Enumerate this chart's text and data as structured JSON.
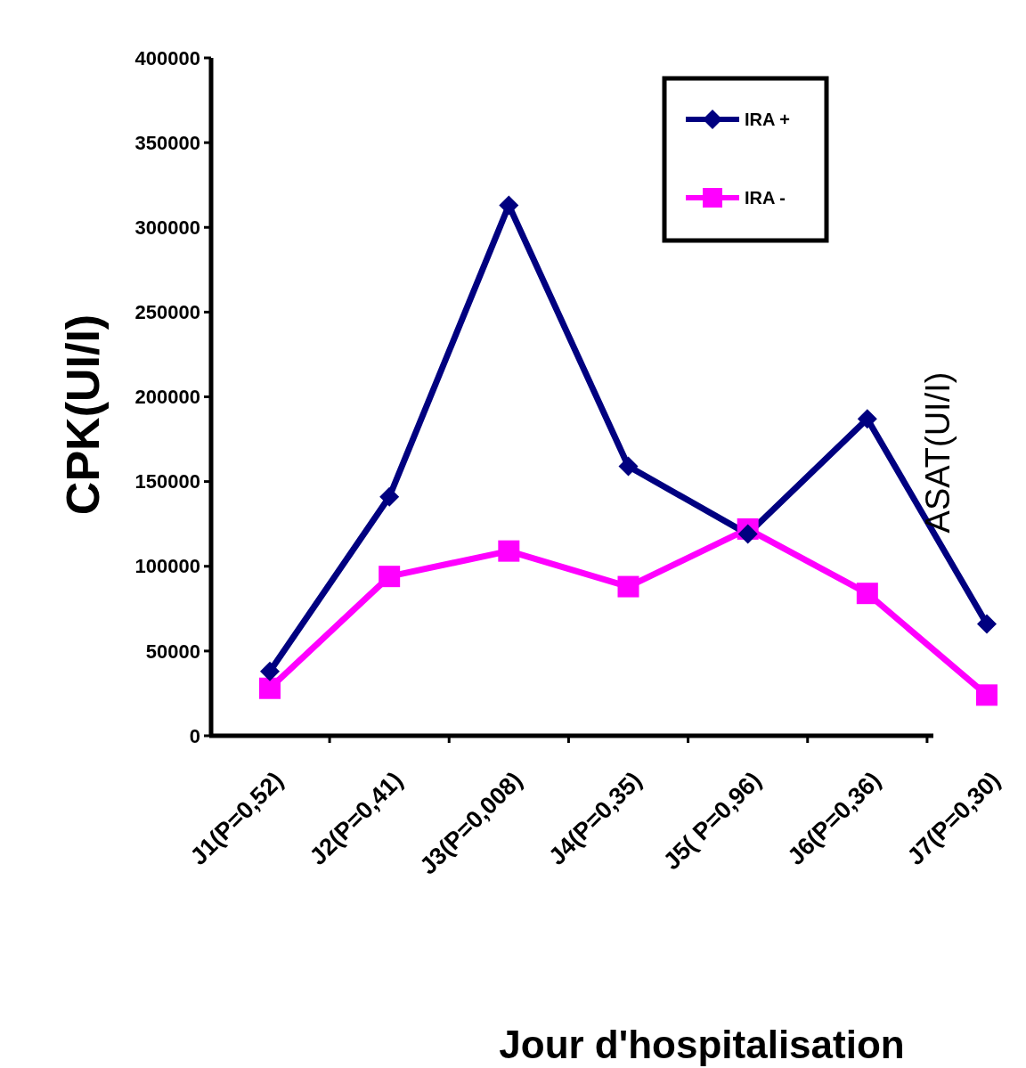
{
  "chart_data": {
    "type": "line",
    "categories": [
      "J1(P=0,52)",
      "J2(P=0,41)",
      "J3(P=0,008)",
      "J4(P=0,35)",
      "J5( P=0,96)",
      "J6(P=0,36)",
      "J7(P=0,30)"
    ],
    "series": [
      {
        "name": "IRA +",
        "color": "#000080",
        "marker": "diamond",
        "values": [
          38000,
          141000,
          313000,
          159000,
          119000,
          187000,
          66000
        ]
      },
      {
        "name": "IRA -",
        "color": "#ff00ff",
        "marker": "square",
        "values": [
          28000,
          94000,
          109000,
          88000,
          122000,
          84000,
          24000
        ]
      }
    ],
    "ylim": [
      0,
      400000
    ],
    "yticks": [
      0,
      50000,
      100000,
      150000,
      200000,
      250000,
      300000,
      350000,
      400000
    ],
    "ylabel": "CPK(UI/I)",
    "xlabel": "Jour d'hospitalisation",
    "annotations": [
      "ASAT(UI/I)"
    ],
    "legend": "top right",
    "grid": false,
    "line_style": "solid"
  }
}
